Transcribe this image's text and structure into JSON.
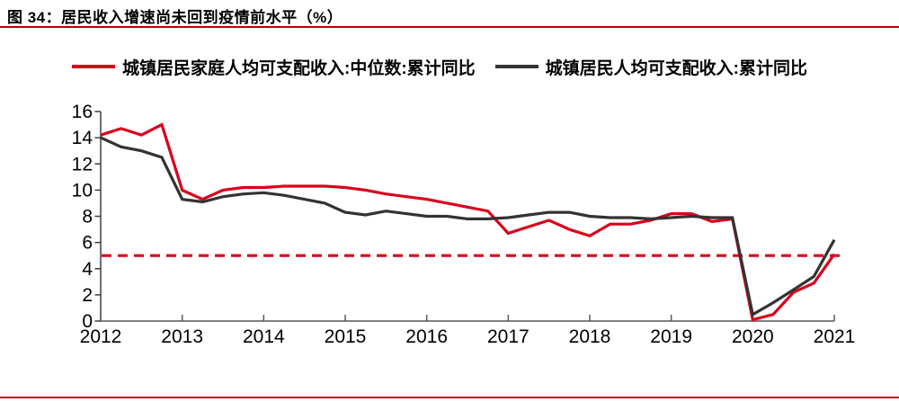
{
  "header": {
    "title": "图 34：居民收入增速尚未回到疫情前水平（%）",
    "accent_color": "#C00000"
  },
  "legend": {
    "items": [
      {
        "label": "城镇居民家庭人均可支配收入:中位数:累计同比",
        "color": "#D9001B"
      },
      {
        "label": "城镇居民人均可支配收入:累计同比",
        "color": "#333333"
      }
    ]
  },
  "chart_data": {
    "type": "line",
    "title": "居民收入增速尚未回到疫情前水平（%）",
    "x": [
      "2012Q1",
      "2012Q2",
      "2012Q3",
      "2012Q4",
      "2013Q1",
      "2013Q2",
      "2013Q3",
      "2013Q4",
      "2014Q1",
      "2014Q2",
      "2014Q3",
      "2014Q4",
      "2015Q1",
      "2015Q2",
      "2015Q3",
      "2015Q4",
      "2016Q1",
      "2016Q2",
      "2016Q3",
      "2016Q4",
      "2017Q1",
      "2017Q2",
      "2017Q3",
      "2017Q4",
      "2018Q1",
      "2018Q2",
      "2018Q3",
      "2018Q4",
      "2019Q1",
      "2019Q2",
      "2019Q3",
      "2019Q4",
      "2020Q1",
      "2020Q2",
      "2020Q3",
      "2020Q4",
      "2021Q1"
    ],
    "x_tick_labels": [
      "2012",
      "2013",
      "2014",
      "2015",
      "2016",
      "2017",
      "2018",
      "2019",
      "2020",
      "2021"
    ],
    "series": [
      {
        "name": "城镇居民家庭人均可支配收入:中位数:累计同比",
        "color": "#D9001B",
        "values": [
          14.2,
          14.7,
          14.2,
          15.0,
          10.0,
          9.3,
          10.0,
          10.2,
          10.2,
          10.3,
          10.3,
          10.3,
          10.2,
          10.0,
          9.7,
          9.5,
          9.3,
          9.0,
          8.7,
          8.4,
          6.7,
          7.2,
          7.7,
          7.0,
          6.5,
          7.4,
          7.4,
          7.7,
          8.2,
          8.2,
          7.6,
          7.8,
          0.1,
          0.5,
          2.2,
          2.9,
          5.1
        ]
      },
      {
        "name": "城镇居民人均可支配收入:累计同比",
        "color": "#333333",
        "values": [
          14.0,
          13.3,
          13.0,
          12.5,
          9.3,
          9.1,
          9.5,
          9.7,
          9.8,
          9.6,
          9.3,
          9.0,
          8.3,
          8.1,
          8.4,
          8.2,
          8.0,
          8.0,
          7.8,
          7.8,
          7.9,
          8.1,
          8.3,
          8.3,
          8.0,
          7.9,
          7.9,
          7.8,
          7.9,
          8.0,
          7.9,
          7.9,
          0.5,
          1.4,
          2.4,
          3.4,
          6.2
        ]
      }
    ],
    "reference_line": {
      "value": 5,
      "color": "#D9001B",
      "style": "dashed"
    },
    "xlabel": "",
    "ylabel": "",
    "ylim": [
      0,
      16
    ],
    "y_tick_step": 2,
    "grid": false,
    "legend_position": "top",
    "axis_colors": {
      "y_axis": "#404040",
      "x_axis": "#808080",
      "tick": "#595959",
      "label": "#000000"
    }
  }
}
